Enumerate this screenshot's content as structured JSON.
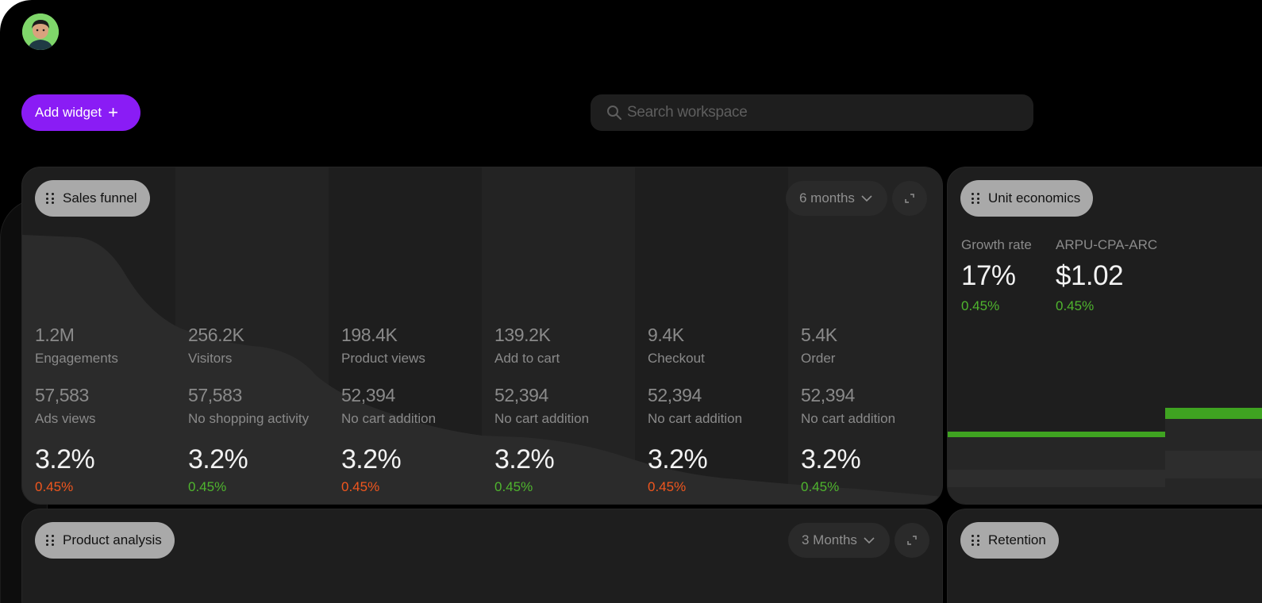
{
  "toolbar": {
    "add_widget_label": "Add widget",
    "add_widget_icon": "plus-icon",
    "search_placeholder": "Search workspace"
  },
  "colors": {
    "accent": "#8a1cf5",
    "positive": "#4fb52e",
    "negative": "#f0561e",
    "card": "#1e1e1e"
  },
  "sales_funnel": {
    "title": "Sales funnel",
    "period": "6 months",
    "stages": [
      {
        "value": "1.2M",
        "name": "Engagements",
        "sub_value": "57,583",
        "sub_name": "Ads views",
        "rate": "3.2%",
        "delta": "0.45%",
        "trend": "negative"
      },
      {
        "value": "256.2K",
        "name": "Visitors",
        "sub_value": "57,583",
        "sub_name": "No shopping activity",
        "rate": "3.2%",
        "delta": "0.45%",
        "trend": "positive"
      },
      {
        "value": "198.4K",
        "name": "Product views",
        "sub_value": "52,394",
        "sub_name": "No cart addition",
        "rate": "3.2%",
        "delta": "0.45%",
        "trend": "negative"
      },
      {
        "value": "139.2K",
        "name": "Add to cart",
        "sub_value": "52,394",
        "sub_name": "No cart addition",
        "rate": "3.2%",
        "delta": "0.45%",
        "trend": "positive"
      },
      {
        "value": "9.4K",
        "name": "Checkout",
        "sub_value": "52,394",
        "sub_name": "No cart addition",
        "rate": "3.2%",
        "delta": "0.45%",
        "trend": "negative"
      },
      {
        "value": "5.4K",
        "name": "Order",
        "sub_value": "52,394",
        "sub_name": "No cart addition",
        "rate": "3.2%",
        "delta": "0.45%",
        "trend": "positive"
      }
    ]
  },
  "unit_economics": {
    "title": "Unit economics",
    "metrics": [
      {
        "label": "Growth rate",
        "value": "17%",
        "delta": "0.45%"
      },
      {
        "label": "ARPU-CPA-ARC",
        "value": "$1.02",
        "delta": "0.45%"
      }
    ]
  },
  "product_analysis": {
    "title": "Product analysis",
    "period": "3 Months"
  },
  "retention": {
    "title": "Retention"
  }
}
